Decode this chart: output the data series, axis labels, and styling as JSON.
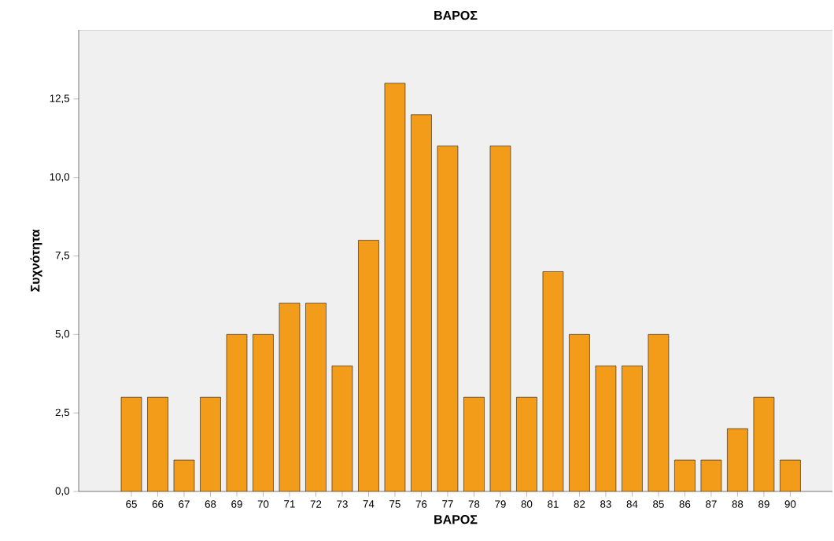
{
  "chart_data": {
    "type": "bar",
    "title": "ΒΑΡΟΣ",
    "xlabel": "ΒΑΡΟΣ",
    "ylabel": "Συχνότητα",
    "categories": [
      "65",
      "66",
      "67",
      "68",
      "69",
      "70",
      "71",
      "72",
      "73",
      "74",
      "75",
      "76",
      "77",
      "78",
      "79",
      "80",
      "81",
      "82",
      "83",
      "84",
      "85",
      "86",
      "87",
      "88",
      "89",
      "90"
    ],
    "values": [
      3,
      3,
      1,
      3,
      5,
      5,
      6,
      6,
      4,
      8,
      13,
      12,
      11,
      3,
      11,
      3,
      7,
      5,
      4,
      4,
      5,
      1,
      1,
      2,
      3,
      1
    ],
    "color": "#f39c1a",
    "ylim": [
      0,
      14.7
    ],
    "yticks": [
      {
        "value": 0,
        "label": "0,0"
      },
      {
        "value": 2.5,
        "label": "2,5"
      },
      {
        "value": 5,
        "label": "5,0"
      },
      {
        "value": 7.5,
        "label": "7,5"
      },
      {
        "value": 10,
        "label": "10,0"
      },
      {
        "value": 12.5,
        "label": "12,5"
      }
    ],
    "grid": false
  }
}
